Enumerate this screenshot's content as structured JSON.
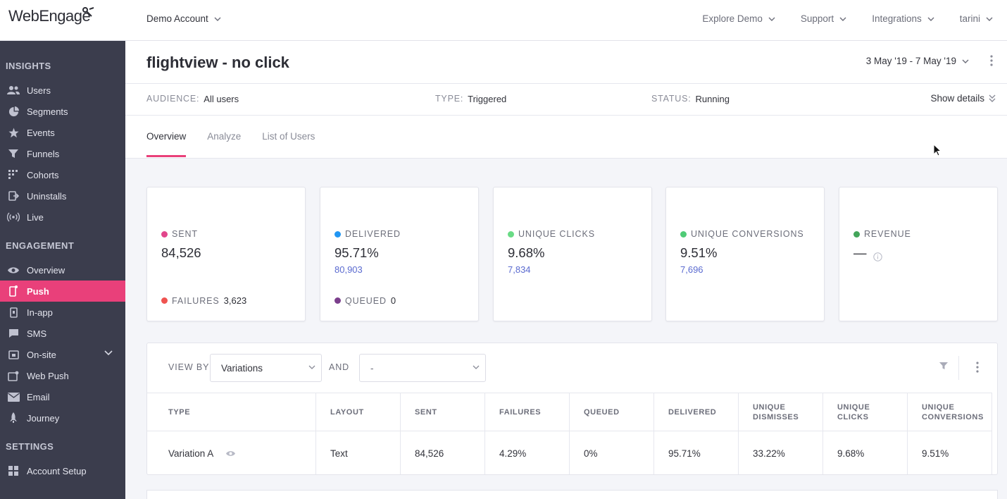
{
  "brand": {
    "logo": "WebEngage"
  },
  "topbar": {
    "account": "Demo Account",
    "nav": [
      "Explore Demo",
      "Support",
      "Integrations",
      "tarini"
    ]
  },
  "sidebar": {
    "sections": [
      {
        "title": "INSIGHTS",
        "items": [
          {
            "label": "Users",
            "icon": "users-icon"
          },
          {
            "label": "Segments",
            "icon": "pie-chart-icon"
          },
          {
            "label": "Events",
            "icon": "star-icon"
          },
          {
            "label": "Funnels",
            "icon": "funnel-icon"
          },
          {
            "label": "Cohorts",
            "icon": "grid-icon"
          },
          {
            "label": "Uninstalls",
            "icon": "logout-icon"
          },
          {
            "label": "Live",
            "icon": "broadcast-icon"
          }
        ]
      },
      {
        "title": "ENGAGEMENT",
        "items": [
          {
            "label": "Overview",
            "icon": "eye-icon"
          },
          {
            "label": "Push",
            "icon": "mobile-push-icon",
            "active": true
          },
          {
            "label": "In-app",
            "icon": "mobile-icon"
          },
          {
            "label": "SMS",
            "icon": "message-icon"
          },
          {
            "label": "On-site",
            "icon": "window-icon",
            "expandable": true
          },
          {
            "label": "Web Push",
            "icon": "browser-push-icon"
          },
          {
            "label": "Email",
            "icon": "envelope-icon"
          },
          {
            "label": "Journey",
            "icon": "rocket-icon"
          }
        ]
      },
      {
        "title": "SETTINGS",
        "items": [
          {
            "label": "Account Setup",
            "icon": "grid-icon"
          }
        ]
      }
    ]
  },
  "campaign": {
    "title": "flightview - no click",
    "date_range": "3 May '19 - 7 May '19",
    "audience_key": "AUDIENCE:",
    "audience": "All users",
    "type_key": "TYPE:",
    "type": "Triggered",
    "status_key": "STATUS:",
    "status": "Running",
    "show_details": "Show details"
  },
  "tabs": [
    "Overview",
    "Analyze",
    "List of Users"
  ],
  "stats": [
    {
      "label": "SENT",
      "value": "84,526",
      "color": "#e2468c",
      "footer_label": "FAILURES",
      "footer_value": "3,623",
      "footer_color": "#ef5350"
    },
    {
      "label": "DELIVERED",
      "value": "95.71%",
      "sub": "80,903",
      "color": "#2196f3",
      "footer_label": "QUEUED",
      "footer_value": "0",
      "footer_color": "#7b3f8c"
    },
    {
      "label": "UNIQUE CLICKS",
      "value": "9.68%",
      "sub": "7,834",
      "color": "#69db85"
    },
    {
      "label": "UNIQUE CONVERSIONS",
      "value": "9.51%",
      "sub": "7,696",
      "color": "#4fcb76"
    },
    {
      "label": "REVENUE",
      "value": "—",
      "color": "#43a55a"
    }
  ],
  "table": {
    "view_by_label": "VIEW BY",
    "view_by_value": "Variations",
    "and_label": "AND",
    "and_value": "-",
    "columns": [
      "TYPE",
      "LAYOUT",
      "SENT",
      "FAILURES",
      "QUEUED",
      "DELIVERED",
      "UNIQUE DISMISSES",
      "UNIQUE CLICKS",
      "UNIQUE CONVERSIONS"
    ],
    "rows": [
      [
        "Variation A",
        "Text",
        "84,526",
        "4.29%",
        "0%",
        "95.71%",
        "33.22%",
        "9.68%",
        "9.51%"
      ]
    ]
  }
}
